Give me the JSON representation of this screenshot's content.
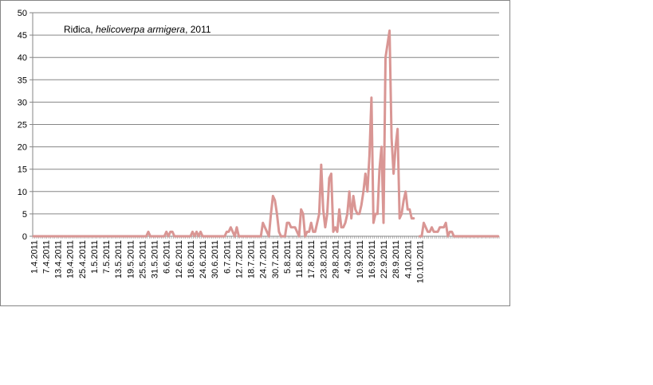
{
  "chart_data": {
    "type": "line",
    "title": {
      "place": "Riđica, ",
      "species": "helicoverpa  armigera",
      "year": ", 2011"
    },
    "xlabel": "",
    "ylabel": "",
    "ylim": [
      0,
      50
    ],
    "y_ticks": [
      0,
      5,
      10,
      15,
      20,
      25,
      30,
      35,
      40,
      45,
      50
    ],
    "x_tick_labels": [
      "1.4.2011",
      "7.4.2011",
      "13.4.2011",
      "19.4.2011",
      "25.4.2011",
      "1.5.2011",
      "7.5.2011",
      "13.5.2011",
      "19.5.2011",
      "25.5.2011",
      "31.5.2011",
      "6.6.2011",
      "12.6.2011",
      "18.6.2011",
      "24.6.2011",
      "30.6.2011",
      "6.7.2011",
      "12.7.2011",
      "18.7.2011",
      "24.7.2011",
      "30.7.2011",
      "5.8.2011",
      "11.8.2011",
      "17.8.2011",
      "23.8.2011",
      "29.8.2011",
      "4.9.2011",
      "10.9.2011",
      "16.9.2011",
      "22.9.2011",
      "28.9.2011",
      "4.10.2011",
      "10.10.2011"
    ],
    "grid": true,
    "legend": "none",
    "line_color": "#d99694",
    "series": [
      {
        "values": [
          0,
          0,
          0,
          0,
          0,
          0,
          0,
          0,
          0,
          0,
          0,
          0,
          0,
          0,
          0,
          0,
          0,
          0,
          0,
          0,
          0,
          0,
          0,
          0,
          0,
          0,
          0,
          0,
          0,
          0,
          0,
          0,
          0,
          0,
          0,
          0,
          0,
          0,
          0,
          0,
          0,
          0,
          0,
          0,
          0,
          0,
          0,
          0,
          0,
          0,
          0,
          0,
          0,
          0,
          0,
          0,
          0,
          1,
          0,
          0,
          0,
          0,
          0,
          0,
          0,
          0,
          1,
          0,
          1,
          1,
          0,
          0,
          0,
          0,
          0,
          0,
          0,
          0,
          0,
          1,
          0,
          1,
          0,
          1,
          0,
          0,
          0,
          0,
          0,
          0,
          0,
          0,
          0,
          0,
          0,
          0,
          1,
          1,
          2,
          1,
          0,
          2,
          0,
          0,
          0,
          0,
          0,
          0,
          0,
          0,
          0,
          0,
          0,
          0,
          3,
          2,
          1,
          0,
          5,
          9,
          8,
          5,
          1,
          0,
          0,
          0,
          3,
          3,
          2,
          2,
          2,
          1,
          0,
          6,
          5,
          0,
          1,
          1,
          3,
          1,
          1,
          3,
          5,
          16,
          6,
          2,
          5,
          13,
          14,
          1,
          2,
          1,
          6,
          2,
          2,
          3,
          5,
          10,
          4,
          9,
          6,
          5,
          5,
          7,
          10,
          14,
          10,
          18,
          31,
          3,
          5,
          5,
          15,
          20,
          3,
          40,
          43,
          46,
          22,
          14,
          20,
          24,
          4,
          5,
          8,
          10,
          6,
          6,
          4,
          4,
          null,
          null,
          0,
          0,
          3,
          2,
          1,
          1,
          2,
          1,
          1,
          1,
          2,
          2,
          2,
          3,
          0,
          1,
          1,
          0,
          0,
          0,
          0,
          0,
          0,
          0,
          0,
          0,
          0,
          0,
          0,
          0,
          0,
          0,
          0,
          0,
          0,
          0,
          0,
          0,
          0,
          0
        ]
      }
    ]
  }
}
